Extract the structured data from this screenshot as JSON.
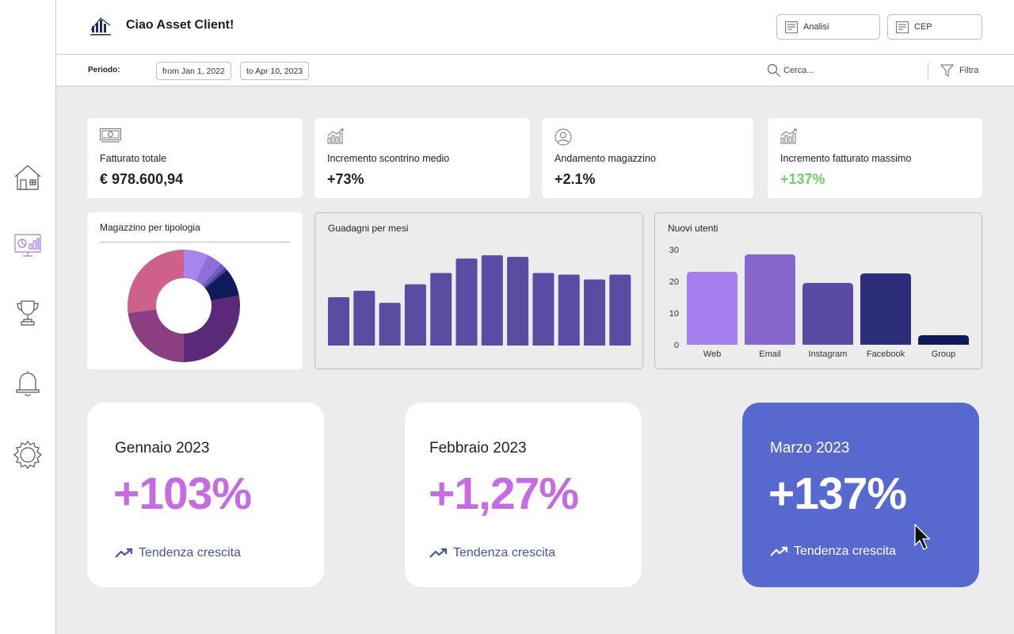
{
  "header": {
    "greeting": "Ciao Asset Client!",
    "buttons": [
      {
        "label": "Analisi",
        "icon": "document-icon"
      },
      {
        "label": "CEP",
        "icon": "document-icon"
      }
    ]
  },
  "sidebar": {
    "items": [
      {
        "icon": "home-icon"
      },
      {
        "icon": "dashboard-chart-icon",
        "active": true
      },
      {
        "icon": "trophy-icon"
      },
      {
        "icon": "bell-icon"
      },
      {
        "icon": "gear-icon"
      }
    ]
  },
  "filter_bar": {
    "period_label": "Periodo:",
    "date_from": "from Jan 1, 2022",
    "date_to": "to Apr 10, 2023",
    "search_placeholder": "Cerca...",
    "filter_label": "Filtra"
  },
  "kpis": [
    {
      "icon": "banknote-icon",
      "label": "Fatturato totale",
      "value": "€ 978.600,94",
      "value_color": "#222222"
    },
    {
      "icon": "growth-chart-icon",
      "label": "Incremento scontrino medio",
      "value": "+73%",
      "value_color": "#222222"
    },
    {
      "icon": "user-circle-icon",
      "label": "Andamento magazzino",
      "value": "+2.1%",
      "value_color": "#222222"
    },
    {
      "icon": "growth-chart-icon",
      "label": "Incremento fatturato massimo",
      "value": "+137%",
      "value_color": "#6ad46a"
    }
  ],
  "charts": {
    "donut": {
      "title": "Magazzino per tipologia"
    },
    "bars": {
      "title": "Guadagni per mesi"
    },
    "users": {
      "title": "Nuovi utenti"
    }
  },
  "chart_data": [
    {
      "type": "pie",
      "title": "Magazzino per tipologia",
      "donut": true,
      "values": [
        7,
        4.5,
        1.5,
        1,
        8,
        28,
        23,
        27
      ],
      "colors": [
        "#a884ed",
        "#8e6fd9",
        "#6f5bc4",
        "#4b3f9a",
        "#0f1a5a",
        "#5a2a78",
        "#8c3e82",
        "#cd6189"
      ]
    },
    {
      "type": "bar",
      "title": "Guadagni per mesi",
      "values": [
        60,
        68,
        53,
        76,
        90,
        108,
        112,
        110,
        90,
        88,
        82,
        88
      ],
      "ylim": [
        0,
        120
      ],
      "color": "#5b4ba3"
    },
    {
      "type": "bar",
      "title": "Nuovi utenti",
      "categories": [
        "Web",
        "Email",
        "Instagram",
        "Facebook",
        "Group"
      ],
      "values": [
        23,
        28.5,
        19.5,
        22.5,
        3
      ],
      "ylim": [
        0,
        30
      ],
      "yticks": [
        0,
        10,
        20,
        30
      ],
      "colors": [
        "#a57ff0",
        "#8766cc",
        "#5a4aa3",
        "#2d2e7a",
        "#0f1a5a"
      ]
    }
  ],
  "months": [
    {
      "title": "Gennaio 2023",
      "value": "+103%",
      "trend": "Tendenza crescita",
      "active": false
    },
    {
      "title": "Febbraio 2023",
      "value": "+1,27%",
      "trend": "Tendenza crescita",
      "active": false
    },
    {
      "title": "Marzo 2023",
      "value": "+137%",
      "trend": "Tendenza crescita",
      "active": true
    }
  ]
}
